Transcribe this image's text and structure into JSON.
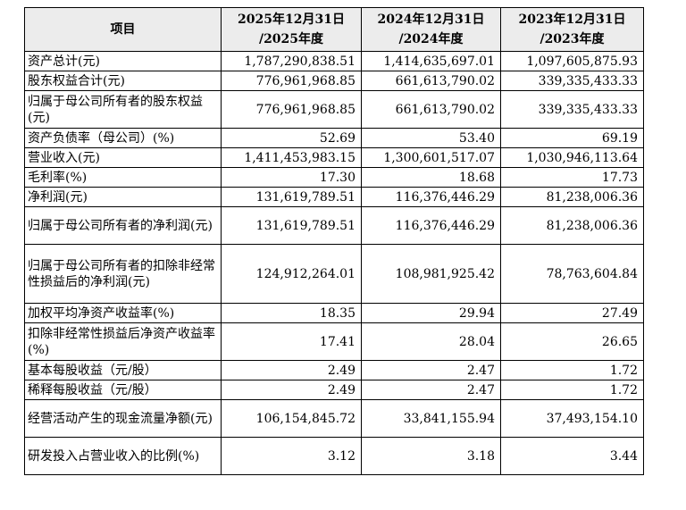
{
  "table": {
    "header": {
      "item": "项目",
      "cols": [
        {
          "line1": "2025年12月31日",
          "line2": "/2025年度"
        },
        {
          "line1": "2024年12月31日",
          "line2": "/2024年度"
        },
        {
          "line1": "2023年12月31日",
          "line2": "/2023年度"
        }
      ]
    },
    "rows": [
      {
        "label": "资产总计(元)",
        "values": [
          "1,787,290,838.51",
          "1,414,635,697.01",
          "1,097,605,875.93"
        ]
      },
      {
        "label": "股东权益合计(元)",
        "values": [
          "776,961,968.85",
          "661,613,790.02",
          "339,335,433.33"
        ]
      },
      {
        "label": "归属于母公司所有者的股东权益(元)",
        "values": [
          "776,961,968.85",
          "661,613,790.02",
          "339,335,433.33"
        ]
      },
      {
        "label": "资产负债率（母公司）(%)",
        "values": [
          "52.69",
          "53.40",
          "69.19"
        ]
      },
      {
        "label": "营业收入(元)",
        "values": [
          "1,411,453,983.15",
          "1,300,601,517.07",
          "1,030,946,113.64"
        ]
      },
      {
        "label": "毛利率(%)",
        "values": [
          "17.30",
          "18.68",
          "17.73"
        ]
      },
      {
        "label": "净利润(元)",
        "values": [
          "131,619,789.51",
          "116,376,446.29",
          "81,238,006.36"
        ]
      },
      {
        "label": "归属于母公司所有者的净利润(元)",
        "values": [
          "131,619,789.51",
          "116,376,446.29",
          "81,238,006.36"
        ]
      },
      {
        "label": "归属于母公司所有者的扣除非经常性损益后的净利润(元)",
        "values": [
          "124,912,264.01",
          "108,981,925.42",
          "78,763,604.84"
        ]
      },
      {
        "label": "加权平均净资产收益率(%)",
        "values": [
          "18.35",
          "29.94",
          "27.49"
        ]
      },
      {
        "label": "扣除非经常性损益后净资产收益率(%)",
        "values": [
          "17.41",
          "28.04",
          "26.65"
        ]
      },
      {
        "label": "基本每股收益（元/股）",
        "values": [
          "2.49",
          "2.47",
          "1.72"
        ]
      },
      {
        "label": "稀释每股收益（元/股）",
        "values": [
          "2.49",
          "2.47",
          "1.72"
        ]
      },
      {
        "label": "经营活动产生的现金流量净额(元)",
        "values": [
          "106,154,845.72",
          "33,841,155.94",
          "37,493,154.10"
        ]
      },
      {
        "label": "研发投入占营业收入的比例(%)",
        "values": [
          "3.12",
          "3.18",
          "3.44"
        ]
      }
    ]
  }
}
